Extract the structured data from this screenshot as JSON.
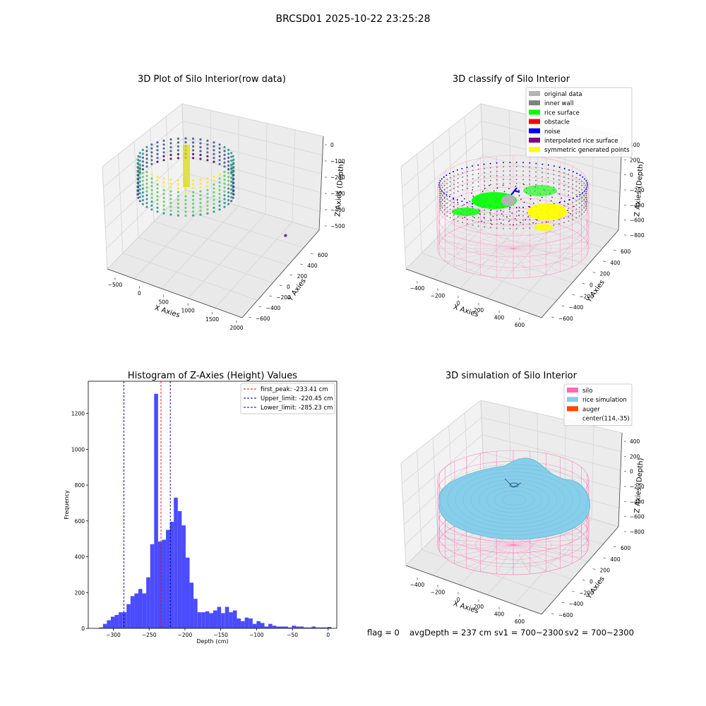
{
  "figure": {
    "suptitle": "BRCSD01 2025-10-22 23:25:28",
    "footer": {
      "flag": "flag = 0",
      "avg_depth": "avgDepth = 237 cm",
      "sv1": "sv1 = 700~2300",
      "sv2": "sv2 = 700~2300"
    }
  },
  "chart_data": [
    {
      "type": "scatter",
      "projection": "3d",
      "title": "3D Plot of Silo Interior(row data)",
      "xlabel": "X Axies",
      "ylabel": "Y Axies",
      "zlabel": "Z Axies (Depth)",
      "xticks": [
        "−500",
        "0",
        "500",
        "1000",
        "1500",
        "2000"
      ],
      "yticks": [
        "−600",
        "−400",
        "−200",
        "0",
        "200",
        "400",
        "600"
      ],
      "zticks": [
        "0",
        "−100",
        "−200",
        "−300",
        "−400",
        "−500"
      ],
      "xlim": [
        -600,
        2000
      ],
      "ylim": [
        -650,
        650
      ],
      "zlim": [
        -560,
        10
      ],
      "colormap": "viridis",
      "outlier_point": {
        "x": 1750,
        "y": 300,
        "z": -530,
        "color": "#6a3d9a"
      }
    },
    {
      "type": "scatter",
      "projection": "3d",
      "title": "3D classify of Silo Interior",
      "xlabel": "X Axies",
      "ylabel": "Y Axies",
      "zlabel": "Z Axies (Depth)",
      "xticks": [
        "−400",
        "−200",
        "0",
        "200",
        "400",
        "600"
      ],
      "yticks": [
        "−600",
        "−400",
        "−200",
        "0",
        "200",
        "400",
        "600"
      ],
      "zticks": [
        "400",
        "200",
        "0",
        "−200",
        "−400",
        "−600",
        "−800"
      ],
      "legend_position": "upper right",
      "legend": [
        {
          "label": "original data",
          "color": "#b3b3b3"
        },
        {
          "label": "inner wall",
          "color": "#808080"
        },
        {
          "label": "rice surface",
          "color": "#00ff00"
        },
        {
          "label": "obstacle",
          "color": "#ff0000"
        },
        {
          "label": "noise",
          "color": "#0000ff"
        },
        {
          "label": "interpolated rice surface",
          "color": "#800080"
        },
        {
          "label": "symmetric generated points",
          "color": "#ffff00"
        }
      ]
    },
    {
      "type": "bar",
      "title": "Histogram of Z-Axies (Height) Values",
      "xlabel": "Depth (cm)",
      "ylabel": "Frequency",
      "xlim": [
        -335,
        12
      ],
      "ylim": [
        0,
        1380
      ],
      "xticks": [
        -300,
        -250,
        -200,
        -150,
        -100,
        -50,
        0
      ],
      "yticks": [
        0,
        200,
        400,
        600,
        800,
        1000,
        1200
      ],
      "bar_color": "#4b4bff",
      "bin_width": 5.5,
      "bins": [
        {
          "x": -320,
          "y": 5
        },
        {
          "x": -314.5,
          "y": 25
        },
        {
          "x": -309,
          "y": 45
        },
        {
          "x": -303.5,
          "y": 65
        },
        {
          "x": -298,
          "y": 75
        },
        {
          "x": -292.5,
          "y": 90
        },
        {
          "x": -287,
          "y": 90
        },
        {
          "x": -281.5,
          "y": 135
        },
        {
          "x": -276,
          "y": 180
        },
        {
          "x": -270.5,
          "y": 195
        },
        {
          "x": -265,
          "y": 220
        },
        {
          "x": -259.5,
          "y": 195
        },
        {
          "x": -254,
          "y": 285
        },
        {
          "x": -248.5,
          "y": 470
        },
        {
          "x": -243,
          "y": 1310
        },
        {
          "x": -237.5,
          "y": 485
        },
        {
          "x": -232,
          "y": 495
        },
        {
          "x": -226.5,
          "y": 550
        },
        {
          "x": -221,
          "y": 595
        },
        {
          "x": -215.5,
          "y": 730
        },
        {
          "x": -210,
          "y": 655
        },
        {
          "x": -204.5,
          "y": 575
        },
        {
          "x": -199,
          "y": 395
        },
        {
          "x": -193.5,
          "y": 255
        },
        {
          "x": -188,
          "y": 165
        },
        {
          "x": -182.5,
          "y": 90
        },
        {
          "x": -177,
          "y": 90
        },
        {
          "x": -171.5,
          "y": 95
        },
        {
          "x": -166,
          "y": 85
        },
        {
          "x": -160.5,
          "y": 100
        },
        {
          "x": -155,
          "y": 120
        },
        {
          "x": -149.5,
          "y": 85
        },
        {
          "x": -144,
          "y": 120
        },
        {
          "x": -138.5,
          "y": 90
        },
        {
          "x": -133,
          "y": 100
        },
        {
          "x": -127.5,
          "y": 55
        },
        {
          "x": -122,
          "y": 40
        },
        {
          "x": -116.5,
          "y": 60
        },
        {
          "x": -111,
          "y": 55
        },
        {
          "x": -105.5,
          "y": 25
        },
        {
          "x": -100,
          "y": 40
        },
        {
          "x": -94.5,
          "y": 30
        },
        {
          "x": -89,
          "y": 10
        },
        {
          "x": -83.5,
          "y": 25
        },
        {
          "x": -78,
          "y": 15
        },
        {
          "x": -72.5,
          "y": 10
        },
        {
          "x": -67,
          "y": 10
        },
        {
          "x": -61.5,
          "y": 10
        },
        {
          "x": -56,
          "y": 5
        },
        {
          "x": -50.5,
          "y": 15
        },
        {
          "x": -45,
          "y": 10
        },
        {
          "x": -39.5,
          "y": 10
        },
        {
          "x": -34,
          "y": 5
        },
        {
          "x": -28.5,
          "y": 5
        },
        {
          "x": -23,
          "y": 10
        },
        {
          "x": -17.5,
          "y": 5
        },
        {
          "x": -12,
          "y": 5
        },
        {
          "x": -6.5,
          "y": 5
        },
        {
          "x": -1,
          "y": 8
        }
      ],
      "vlines": [
        {
          "x": -233.41,
          "label": "first_peak: -233.41 cm",
          "color": "#ff0000"
        },
        {
          "x": -220.45,
          "label": "Upper_limit: -220.45 cm",
          "color": "#00008b"
        },
        {
          "x": -285.23,
          "label": "Lower_limit: -285.23 cm",
          "color": "#00008b"
        }
      ],
      "legend_position": "upper right"
    },
    {
      "type": "surface",
      "projection": "3d",
      "title": "3D simulation of Silo Interior",
      "xlabel": "X Axies",
      "ylabel": "Y Axies",
      "zlabel": "Z Axies (Depth)",
      "xticks": [
        "−400",
        "−200",
        "0",
        "200",
        "400",
        "600"
      ],
      "yticks": [
        "−600",
        "−400",
        "−200",
        "0",
        "200",
        "400",
        "600"
      ],
      "zticks": [
        "400",
        "200",
        "0",
        "−200",
        "−400",
        "−600",
        "−800"
      ],
      "legend_position": "upper right",
      "legend": [
        {
          "label": "silo",
          "color": "#ff69b4"
        },
        {
          "label": "rice simulation",
          "color": "#87ceeb"
        },
        {
          "label": "auger",
          "color": "#ff4500"
        },
        {
          "label": "center(114,-35)",
          "color": ""
        }
      ]
    }
  ]
}
